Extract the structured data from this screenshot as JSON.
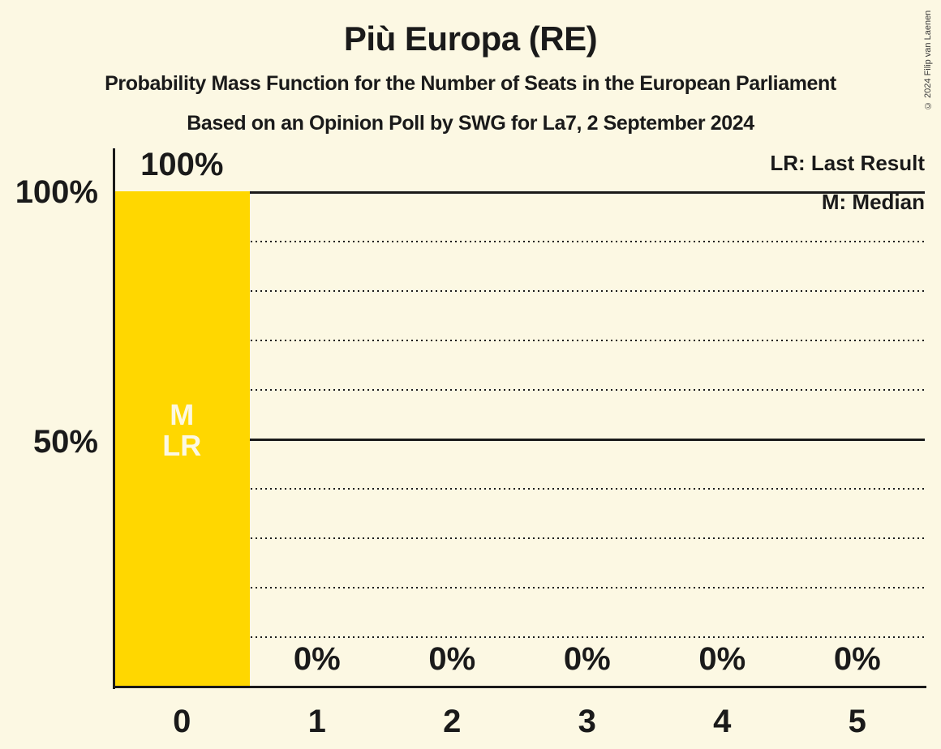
{
  "title": "Più Europa (RE)",
  "subtitle": "Probability Mass Function for the Number of Seats in the European Parliament",
  "source_line": "Based on an Opinion Poll by SWG for La7, 2 September 2024",
  "copyright": "© 2024 Filip van Laenen",
  "legend": {
    "last_result": "LR: Last Result",
    "median": "M: Median"
  },
  "y_axis": {
    "tick_100": "100%",
    "tick_50": "50%"
  },
  "colors": {
    "background": "#FCF8E3",
    "bar": "#FFD700",
    "text": "#1a1a1a",
    "annotation_text": "#FCF8E3"
  },
  "chart_data": {
    "type": "bar",
    "title": "Più Europa (RE)",
    "subtitle": "Probability Mass Function for the Number of Seats in the European Parliament",
    "source_line": "Based on an Opinion Poll by SWG for La7, 2 September 2024",
    "categories": [
      "0",
      "1",
      "2",
      "3",
      "4",
      "5"
    ],
    "values": [
      100,
      0,
      0,
      0,
      0,
      0
    ],
    "bar_labels": [
      "100%",
      "0%",
      "0%",
      "0%",
      "0%",
      "0%"
    ],
    "xlabel": "",
    "ylabel": "",
    "ylim": [
      0,
      100
    ],
    "y_tick_labels": [
      "100%",
      "50%"
    ],
    "legend_entries": [
      "LR: Last Result",
      "M: Median"
    ],
    "legend_position": "top-right",
    "grid": "dotted every 10%, solid at 50% and 100%",
    "gridlines": [
      {
        "pct": 10,
        "style": "dotted"
      },
      {
        "pct": 20,
        "style": "dotted"
      },
      {
        "pct": 30,
        "style": "dotted"
      },
      {
        "pct": 40,
        "style": "dotted"
      },
      {
        "pct": 50,
        "style": "solid"
      },
      {
        "pct": 60,
        "style": "dotted"
      },
      {
        "pct": 70,
        "style": "dotted"
      },
      {
        "pct": 80,
        "style": "dotted"
      },
      {
        "pct": 90,
        "style": "dotted"
      },
      {
        "pct": 100,
        "style": "solid"
      }
    ],
    "bar_color": "#FFD700",
    "annotations": [
      {
        "column": 0,
        "lines": [
          "M",
          "LR"
        ],
        "meaning": "Median and Last Result at 0 seats"
      }
    ]
  }
}
